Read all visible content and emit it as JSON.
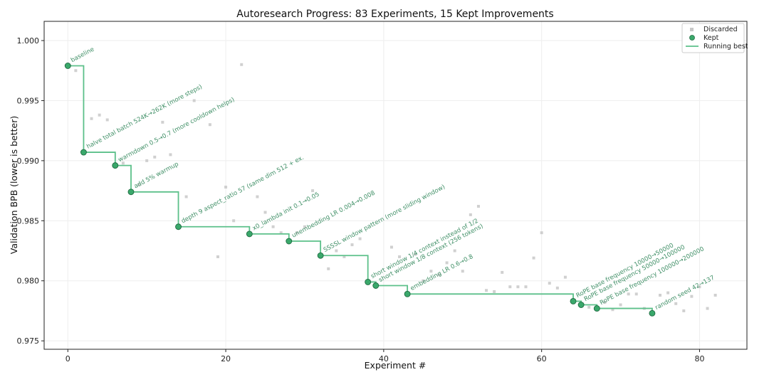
{
  "chart_data": {
    "type": "scatter",
    "title": "Autoresearch Progress: 83 Experiments, 15 Kept Improvements",
    "xlabel": "Experiment #",
    "ylabel": "Validation BPB (lower is better)",
    "xlim": [
      -3,
      86
    ],
    "ylim": [
      0.9743,
      1.0016
    ],
    "xticks": [
      0,
      20,
      40,
      60,
      80
    ],
    "yticks": [
      0.975,
      0.98,
      0.985,
      0.99,
      0.995,
      1.0
    ],
    "ytick_labels": [
      "0.975",
      "0.980",
      "0.985",
      "0.990",
      "0.995",
      "1.000"
    ],
    "grid": true,
    "legend_position": "top-right",
    "legend": [
      "Discarded",
      "Kept",
      "Running best"
    ],
    "colors": {
      "kept": "#3aa86b",
      "kept_edge": "#1f6b41",
      "running_best": "#5cc08a",
      "discarded": "#c8c8c8",
      "annotation": "#3f8f66"
    },
    "series": [
      {
        "name": "Discarded",
        "points": [
          [
            1,
            0.9975
          ],
          [
            3,
            0.9935
          ],
          [
            4,
            0.9938
          ],
          [
            5,
            0.9934
          ],
          [
            7,
            0.9898
          ],
          [
            9,
            0.988
          ],
          [
            10,
            0.99
          ],
          [
            11,
            0.9903
          ],
          [
            12,
            0.9932
          ],
          [
            13,
            0.9905
          ],
          [
            15,
            0.987
          ],
          [
            16,
            0.995
          ],
          [
            18,
            0.993
          ],
          [
            19,
            0.982
          ],
          [
            20,
            0.9878
          ],
          [
            21,
            0.985
          ],
          [
            22,
            0.998
          ],
          [
            24,
            0.987
          ],
          [
            25,
            0.9857
          ],
          [
            26,
            0.9845
          ],
          [
            27,
            0.984
          ],
          [
            29,
            0.984
          ],
          [
            30,
            0.9845
          ],
          [
            31,
            0.9875
          ],
          [
            33,
            0.981
          ],
          [
            34,
            0.9825
          ],
          [
            35,
            0.982
          ],
          [
            36,
            0.983
          ],
          [
            37,
            0.9835
          ],
          [
            41,
            0.9828
          ],
          [
            42,
            0.982
          ],
          [
            44,
            0.9822
          ],
          [
            45,
            0.98
          ],
          [
            46,
            0.9808
          ],
          [
            47,
            0.9805
          ],
          [
            48,
            0.9815
          ],
          [
            49,
            0.9825
          ],
          [
            50,
            0.9808
          ],
          [
            51,
            0.9855
          ],
          [
            52,
            0.9862
          ],
          [
            53,
            0.9792
          ],
          [
            54,
            0.9791
          ],
          [
            55,
            0.9807
          ],
          [
            56,
            0.9795
          ],
          [
            57,
            0.9795
          ],
          [
            58,
            0.9795
          ],
          [
            59,
            0.9819
          ],
          [
            60,
            0.984
          ],
          [
            61,
            0.9798
          ],
          [
            62,
            0.9794
          ],
          [
            63,
            0.9803
          ],
          [
            66,
            0.9778
          ],
          [
            68,
            0.9782
          ],
          [
            69,
            0.9776
          ],
          [
            70,
            0.978
          ],
          [
            71,
            0.9789
          ],
          [
            72,
            0.9789
          ],
          [
            73,
            0.9777
          ],
          [
            75,
            0.9788
          ],
          [
            76,
            0.979
          ],
          [
            77,
            0.9781
          ],
          [
            78,
            0.9775
          ],
          [
            79,
            0.9787
          ],
          [
            80,
            0.9795
          ],
          [
            81,
            0.9777
          ],
          [
            82,
            0.9788
          ]
        ]
      },
      {
        "name": "Kept",
        "points": [
          [
            0,
            0.9979
          ],
          [
            2,
            0.9907
          ],
          [
            6,
            0.9896
          ],
          [
            8,
            0.9874
          ],
          [
            14,
            0.9845
          ],
          [
            23,
            0.9839
          ],
          [
            28,
            0.9833
          ],
          [
            32,
            0.9821
          ],
          [
            38,
            0.9799
          ],
          [
            39,
            0.9796
          ],
          [
            43,
            0.9789
          ],
          [
            64,
            0.9783
          ],
          [
            65,
            0.978
          ],
          [
            67,
            0.9777
          ],
          [
            74,
            0.9773
          ]
        ]
      },
      {
        "name": "Running best",
        "points": [
          [
            0,
            0.9979
          ],
          [
            2,
            0.9907
          ],
          [
            6,
            0.9896
          ],
          [
            8,
            0.9874
          ],
          [
            14,
            0.9845
          ],
          [
            23,
            0.9839
          ],
          [
            28,
            0.9833
          ],
          [
            32,
            0.9821
          ],
          [
            38,
            0.9799
          ],
          [
            39,
            0.9796
          ],
          [
            43,
            0.9789
          ],
          [
            64,
            0.9783
          ],
          [
            65,
            0.978
          ],
          [
            67,
            0.9777
          ],
          [
            74,
            0.9773
          ]
        ],
        "end_x": 74
      }
    ],
    "annotations": [
      "baseline",
      "halve total batch 524K→262K (more steps)",
      "warmdown 0.5→0.7 (more cooldown helps)",
      "add 5% warmup",
      "depth 9 aspect_ratio 57 (same dim 512 + ex.",
      "x0_lambda init 0.1→0.05",
      "unembedding LR 0.004→0.008",
      "SSSSL window pattern (more sliding window)",
      "short window 1/4 context instead of 1/2",
      "short window 1/8 context (256 tokens)",
      "embedding LR 0.6→0.8",
      "RoPE base frequency 10000→50000",
      "RoPE base frequency 50000→100000",
      "RoPE base frequency 100000→200000",
      "random seed 42→137"
    ]
  }
}
